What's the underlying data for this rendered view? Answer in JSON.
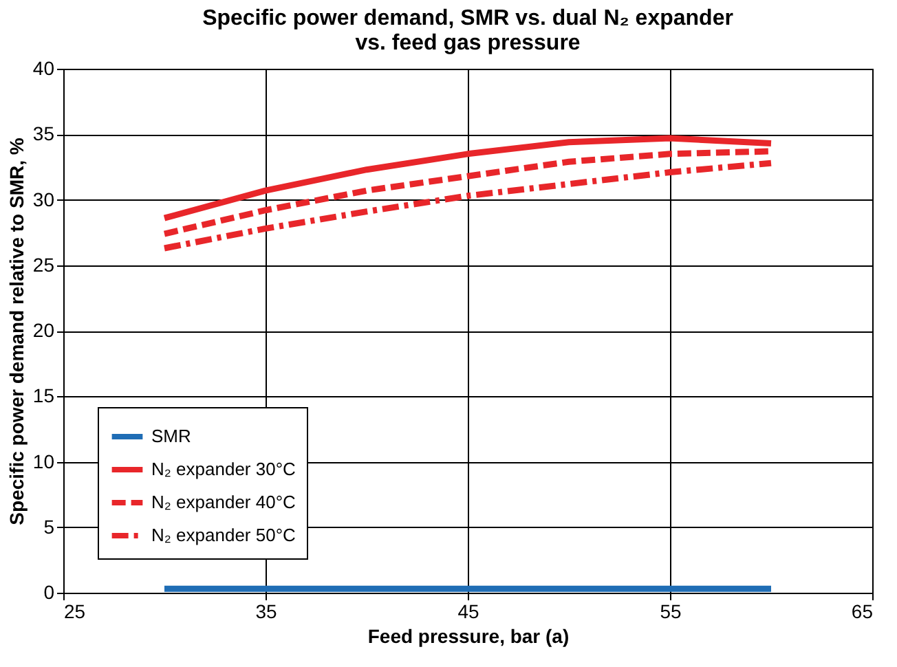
{
  "chart_data": {
    "type": "line",
    "title": "Specific power demand, SMR vs. dual N₂ expander\nvs. feed gas pressure",
    "xlabel": "Feed pressure, bar (a)",
    "ylabel": "Specific power demand relative to SMR, %",
    "x": [
      30,
      35,
      40,
      45,
      50,
      55,
      60
    ],
    "series": [
      {
        "name": "SMR",
        "color": "#1f6db5",
        "line_style": "solid",
        "values": [
          0.3,
          0.3,
          0.3,
          0.3,
          0.3,
          0.3,
          0.3
        ]
      },
      {
        "name": "N₂ expander 30°C",
        "color": "#e8262a",
        "line_style": "solid",
        "values": [
          28.6,
          30.7,
          32.3,
          33.5,
          34.4,
          34.7,
          34.3
        ]
      },
      {
        "name": "N₂ expander 40°C",
        "color": "#e8262a",
        "line_style": "dashed",
        "values": [
          27.4,
          29.2,
          30.7,
          31.8,
          32.9,
          33.5,
          33.7
        ]
      },
      {
        "name": "N₂ expander 50°C",
        "color": "#e8262a",
        "line_style": "dashdot",
        "values": [
          26.3,
          27.8,
          29.1,
          30.3,
          31.2,
          32.1,
          32.8
        ]
      }
    ],
    "xlim": [
      25,
      65
    ],
    "xticks": [
      25,
      35,
      45,
      55,
      65
    ],
    "ylim": [
      0,
      40
    ],
    "yticks": [
      0,
      5,
      10,
      15,
      20,
      25,
      30,
      35,
      40
    ],
    "grid": true,
    "legend": "bottom left",
    "marker": "none"
  }
}
